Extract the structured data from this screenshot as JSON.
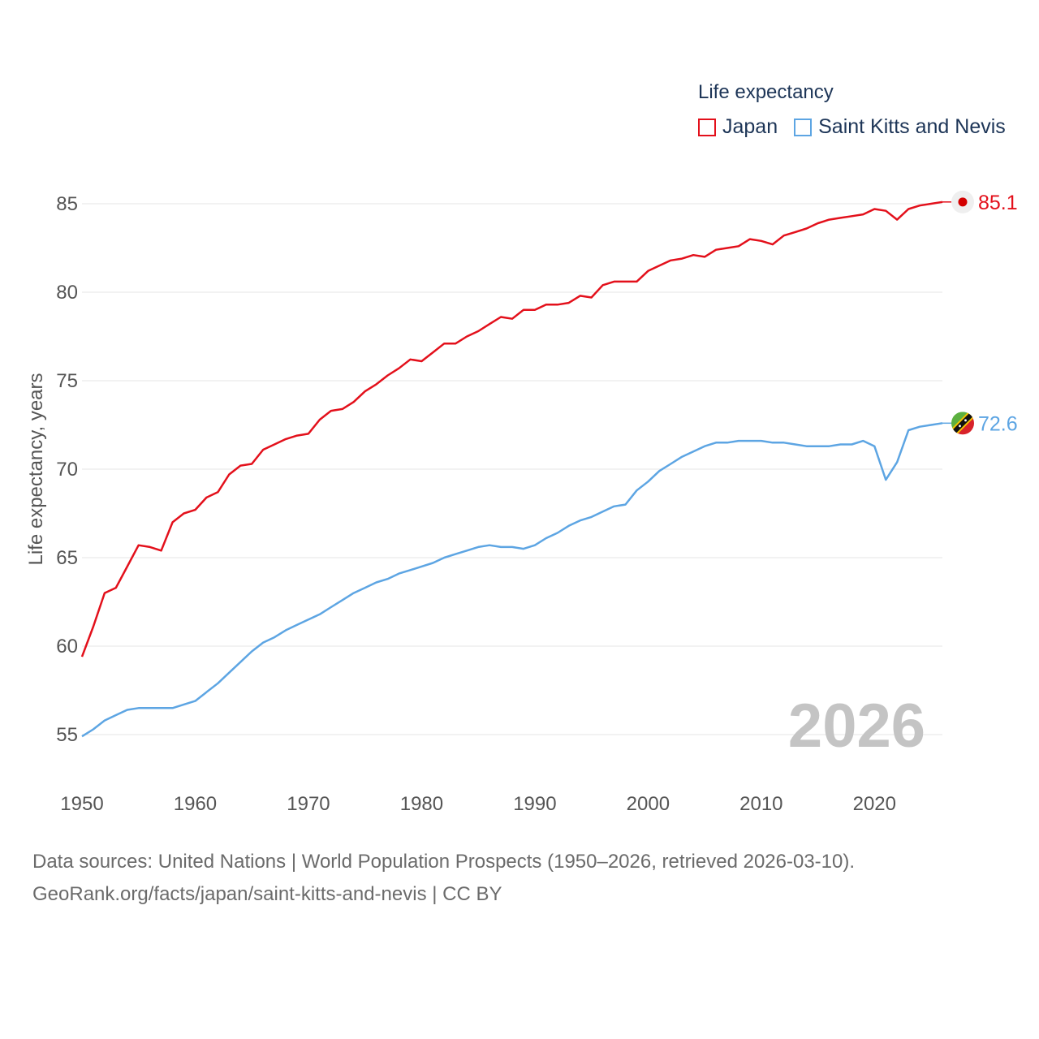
{
  "legend": {
    "title": "Life expectancy",
    "items": [
      {
        "label": "Japan",
        "color": "#e3101b"
      },
      {
        "label": "Saint Kitts and Nevis",
        "color": "#5da5e3"
      }
    ]
  },
  "footer": {
    "line1": "Data sources: United Nations | World Population Prospects (1950–2026, retrieved 2026-03-10).",
    "line2": "GeoRank.org/facts/japan/saint-kitts-and-nevis | CC BY"
  },
  "chart_data": {
    "type": "line",
    "title": "Life expectancy",
    "xlabel": "",
    "ylabel": "Life expectancy, years",
    "xlim": [
      1950,
      2026
    ],
    "ylim": [
      55,
      85
    ],
    "xticks": [
      1950,
      1960,
      1970,
      1980,
      1990,
      2000,
      2010,
      2020
    ],
    "yticks": [
      55,
      60,
      65,
      70,
      75,
      80,
      85
    ],
    "grid": true,
    "legend_position": "top-right",
    "year_label": "2026",
    "series": [
      {
        "name": "Japan",
        "color": "#e3101b",
        "end_label": "85.1",
        "flag": "japan-flag",
        "x": [
          1950,
          1951,
          1952,
          1953,
          1954,
          1955,
          1956,
          1957,
          1958,
          1959,
          1960,
          1961,
          1962,
          1963,
          1964,
          1965,
          1966,
          1967,
          1968,
          1969,
          1970,
          1971,
          1972,
          1973,
          1974,
          1975,
          1976,
          1977,
          1978,
          1979,
          1980,
          1981,
          1982,
          1983,
          1984,
          1985,
          1986,
          1987,
          1988,
          1989,
          1990,
          1991,
          1992,
          1993,
          1994,
          1995,
          1996,
          1997,
          1998,
          1999,
          2000,
          2001,
          2002,
          2003,
          2004,
          2005,
          2006,
          2007,
          2008,
          2009,
          2010,
          2011,
          2012,
          2013,
          2014,
          2015,
          2016,
          2017,
          2018,
          2019,
          2020,
          2021,
          2022,
          2023,
          2024,
          2025,
          2026
        ],
        "values": [
          59.4,
          61.1,
          63.0,
          63.3,
          64.5,
          65.7,
          65.6,
          65.4,
          67.0,
          67.5,
          67.7,
          68.4,
          68.7,
          69.7,
          70.2,
          70.3,
          71.1,
          71.4,
          71.7,
          71.9,
          72.0,
          72.8,
          73.3,
          73.4,
          73.8,
          74.4,
          74.8,
          75.3,
          75.7,
          76.2,
          76.1,
          76.6,
          77.1,
          77.1,
          77.5,
          77.8,
          78.2,
          78.6,
          78.5,
          79.0,
          79.0,
          79.3,
          79.3,
          79.4,
          79.8,
          79.7,
          80.4,
          80.6,
          80.6,
          80.6,
          81.2,
          81.5,
          81.8,
          81.9,
          82.1,
          82.0,
          82.4,
          82.5,
          82.6,
          83.0,
          82.9,
          82.7,
          83.2,
          83.4,
          83.6,
          83.9,
          84.1,
          84.2,
          84.3,
          84.4,
          84.7,
          84.6,
          84.1,
          84.7,
          84.9,
          85.0,
          85.1
        ]
      },
      {
        "name": "Saint Kitts and Nevis",
        "color": "#5da5e3",
        "end_label": "72.6",
        "flag": "saint-kitts-and-nevis-flag",
        "x": [
          1950,
          1951,
          1952,
          1953,
          1954,
          1955,
          1956,
          1957,
          1958,
          1959,
          1960,
          1961,
          1962,
          1963,
          1964,
          1965,
          1966,
          1967,
          1968,
          1969,
          1970,
          1971,
          1972,
          1973,
          1974,
          1975,
          1976,
          1977,
          1978,
          1979,
          1980,
          1981,
          1982,
          1983,
          1984,
          1985,
          1986,
          1987,
          1988,
          1989,
          1990,
          1991,
          1992,
          1993,
          1994,
          1995,
          1996,
          1997,
          1998,
          1999,
          2000,
          2001,
          2002,
          2003,
          2004,
          2005,
          2006,
          2007,
          2008,
          2009,
          2010,
          2011,
          2012,
          2013,
          2014,
          2015,
          2016,
          2017,
          2018,
          2019,
          2020,
          2021,
          2022,
          2023,
          2024,
          2025,
          2026
        ],
        "values": [
          54.9,
          55.3,
          55.8,
          56.1,
          56.4,
          56.5,
          56.5,
          56.5,
          56.5,
          56.7,
          56.9,
          57.4,
          57.9,
          58.5,
          59.1,
          59.7,
          60.2,
          60.5,
          60.9,
          61.2,
          61.5,
          61.8,
          62.2,
          62.6,
          63.0,
          63.3,
          63.6,
          63.8,
          64.1,
          64.3,
          64.5,
          64.7,
          65.0,
          65.2,
          65.4,
          65.6,
          65.7,
          65.6,
          65.6,
          65.5,
          65.7,
          66.1,
          66.4,
          66.8,
          67.1,
          67.3,
          67.6,
          67.9,
          68.0,
          68.8,
          69.3,
          69.9,
          70.3,
          70.7,
          71.0,
          71.3,
          71.5,
          71.5,
          71.6,
          71.6,
          71.6,
          71.5,
          71.5,
          71.4,
          71.3,
          71.3,
          71.3,
          71.4,
          71.4,
          71.6,
          71.3,
          69.4,
          70.4,
          72.2,
          72.4,
          72.5,
          72.6
        ]
      }
    ]
  }
}
